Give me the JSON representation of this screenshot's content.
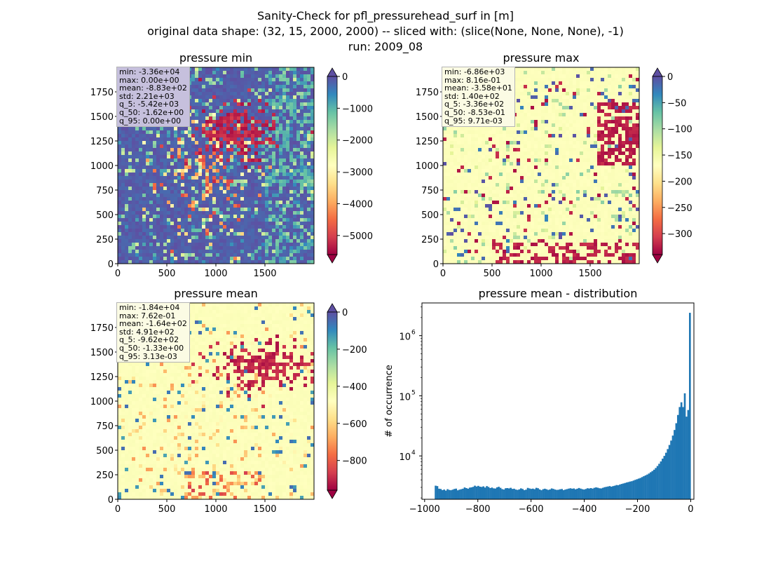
{
  "figure": {
    "title_lines": [
      "Sanity-Check for pfl_pressurehead_surf in [m]",
      "original data shape: (32, 15, 2000, 2000) -- sliced with: (slice(None, None, None), -1)",
      "run: 2009_08"
    ]
  },
  "colors": {
    "spectral": [
      "#9e0142",
      "#d53e4f",
      "#f46d43",
      "#fdae61",
      "#fee08b",
      "#ffffbf",
      "#e6f598",
      "#abdda4",
      "#66c2a5",
      "#3288bd",
      "#5e4fa2"
    ],
    "histogram_bar": "#1f77b4",
    "statbox_min_bg": "#c6c0dd",
    "statbox_bg": "#fbfbe4"
  },
  "chart_data": [
    {
      "type": "heatmap",
      "title": "pressure min",
      "colormap": "Spectral",
      "xlim": [
        0,
        2000
      ],
      "ylim": [
        0,
        2000
      ],
      "xticks": [
        "0",
        "500",
        "1000",
        "1500"
      ],
      "yticks": [
        "0",
        "250",
        "500",
        "750",
        "1000",
        "1250",
        "1500",
        "1750"
      ],
      "colorbar": {
        "range": [
          -5600,
          0
        ],
        "ticks": [
          "0",
          "−1000",
          "−2000",
          "−3000",
          "−4000",
          "−5000"
        ],
        "extend": "both"
      },
      "stats": [
        "min: -3.36e+04",
        "max: 0.00e+00",
        "mean: -8.83e+02",
        "std: 2.21e+03",
        "q_5: -5.42e+03",
        "q_50: -1.62e+00",
        "q_95: 0.00e+00"
      ]
    },
    {
      "type": "heatmap",
      "title": "pressure max",
      "colormap": "Spectral",
      "xlim": [
        0,
        2000
      ],
      "ylim": [
        0,
        2000
      ],
      "xticks": [
        "0",
        "500",
        "1000",
        "1500"
      ],
      "yticks": [
        "0",
        "250",
        "500",
        "750",
        "1000",
        "1250",
        "1500",
        "1750"
      ],
      "colorbar": {
        "range": [
          -340,
          0
        ],
        "ticks": [
          "0",
          "−50",
          "−100",
          "−150",
          "−200",
          "−250",
          "−300"
        ],
        "extend": "both"
      },
      "stats": [
        "min: -6.86e+03",
        "max: 8.16e-01",
        "mean: -3.58e+01",
        "std: 1.40e+02",
        "q_5: -3.36e+02",
        "q_50: -8.53e-01",
        "q_95: 9.71e-03"
      ]
    },
    {
      "type": "heatmap",
      "title": "pressure mean",
      "colormap": "Spectral",
      "xlim": [
        0,
        2000
      ],
      "ylim": [
        0,
        2000
      ],
      "xticks": [
        "0",
        "500",
        "1000",
        "1500"
      ],
      "yticks": [
        "0",
        "250",
        "500",
        "750",
        "1000",
        "1250",
        "1500",
        "1750"
      ],
      "colorbar": {
        "range": [
          -960,
          0
        ],
        "ticks": [
          "0",
          "−200",
          "−400",
          "−600",
          "−800"
        ],
        "extend": "both"
      },
      "stats": [
        "min: -1.84e+04",
        "max: 7.62e-01",
        "mean: -1.64e+02",
        "std: 4.91e+02",
        "q_5: -9.62e+02",
        "q_50: -1.33e+00",
        "q_95: 3.13e-03"
      ]
    },
    {
      "type": "bar",
      "title": "pressure mean - distribution",
      "xlabel": "",
      "ylabel": "# of occurrence",
      "yscale": "log",
      "xlim": [
        -1010,
        12
      ],
      "ylim": [
        1900,
        3500000
      ],
      "xticks": [
        -1000,
        -800,
        -600,
        -400,
        -200,
        0
      ],
      "xtick_labels": [
        "−1000",
        "−800",
        "−600",
        "−400",
        "−200",
        "0"
      ],
      "yticks": [
        10000,
        100000,
        1000000
      ],
      "ytick_labels": [
        "10",
        "10",
        "10"
      ],
      "ytick_exponents": [
        "4",
        "5",
        "6"
      ],
      "bins": {
        "start": -962,
        "end": 0,
        "count": 150
      },
      "values": [
        3200,
        3150,
        2850,
        2820,
        2700,
        2760,
        2650,
        2800,
        2720,
        2690,
        2750,
        2820,
        2860,
        2680,
        2750,
        2800,
        2850,
        2990,
        2920,
        2850,
        2970,
        3000,
        3060,
        3200,
        3100,
        3180,
        3080,
        3050,
        3120,
        2980,
        3150,
        3050,
        2920,
        2980,
        2890,
        2870,
        3000,
        3070,
        2950,
        2810,
        2760,
        2900,
        2920,
        2880,
        2950,
        2830,
        2850,
        2760,
        2720,
        2780,
        2890,
        2820,
        2700,
        2750,
        2940,
        2880,
        2830,
        2860,
        2800,
        2950,
        2900,
        2770,
        2690,
        2800,
        2850,
        2790,
        2720,
        2770,
        2880,
        2830,
        2760,
        2720,
        2740,
        2790,
        2820,
        2700,
        2760,
        2810,
        2860,
        2900,
        2850,
        2880,
        2790,
        2850,
        2930,
        2860,
        2800,
        2760,
        2820,
        2900,
        2870,
        2920,
        2860,
        2950,
        3000,
        2960,
        2900,
        2880,
        2950,
        3020,
        3060,
        3100,
        3150,
        3080,
        3150,
        3200,
        3280,
        3260,
        3350,
        3420,
        3480,
        3550,
        3620,
        3680,
        3750,
        3800,
        3900,
        4000,
        4100,
        4200,
        4300,
        4450,
        4600,
        4750,
        4900,
        5100,
        5350,
        5600,
        5900,
        6300,
        6800,
        7400,
        8100,
        9000,
        10000,
        11300,
        13000,
        15200,
        18000,
        21800,
        27000,
        35000,
        48000,
        65000,
        78000,
        65000,
        110000,
        45000,
        58000,
        2400000
      ]
    }
  ]
}
